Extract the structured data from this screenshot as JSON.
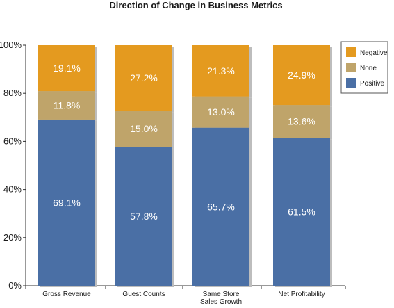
{
  "chart_data": {
    "type": "bar",
    "stacked": true,
    "title": "Direction of Change in Business Metrics",
    "categories": [
      [
        "Gross Revenue"
      ],
      [
        "Guest Counts"
      ],
      [
        "Same Store",
        "Sales Growth"
      ],
      [
        "Net Profitability"
      ]
    ],
    "series": [
      {
        "name": "Positive",
        "values": [
          69.1,
          57.8,
          65.7,
          61.5
        ],
        "labels": [
          "69.1%",
          "57.8%",
          "65.7%",
          "61.5%"
        ],
        "color": "#4a6fa5"
      },
      {
        "name": "None",
        "values": [
          11.8,
          15.0,
          13.0,
          13.6
        ],
        "labels": [
          "11.8%",
          "15.0%",
          "13.0%",
          "13.6%"
        ],
        "color": "#bfa46a"
      },
      {
        "name": "Negative",
        "values": [
          19.1,
          27.2,
          21.3,
          24.9
        ],
        "labels": [
          "19.1%",
          "27.2%",
          "21.3%",
          "24.9%"
        ],
        "color": "#e49a1f"
      }
    ],
    "y_ticks": [
      "0%",
      "20%",
      "40%",
      "60%",
      "80%",
      "100%"
    ],
    "ylim": [
      0,
      100
    ],
    "grid": false,
    "legend": {
      "placement": "top-right",
      "entries": [
        "Negative",
        "None",
        "Positive"
      ]
    }
  }
}
